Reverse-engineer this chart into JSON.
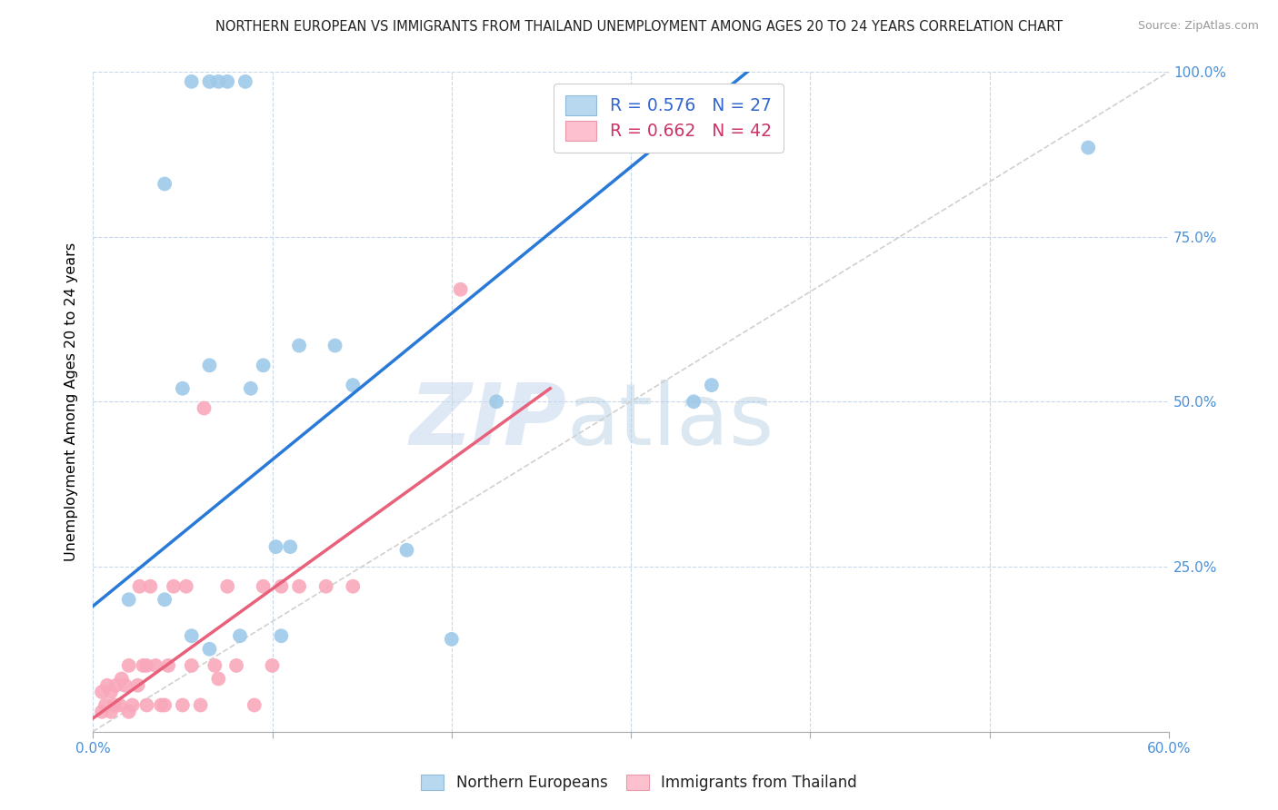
{
  "title": "NORTHERN EUROPEAN VS IMMIGRANTS FROM THAILAND UNEMPLOYMENT AMONG AGES 20 TO 24 YEARS CORRELATION CHART",
  "source": "Source: ZipAtlas.com",
  "ylabel": "Unemployment Among Ages 20 to 24 years",
  "xlim": [
    0.0,
    0.6
  ],
  "ylim": [
    0.0,
    1.0
  ],
  "xticks": [
    0.0,
    0.1,
    0.2,
    0.3,
    0.4,
    0.5,
    0.6
  ],
  "xtick_labels": [
    "0.0%",
    "",
    "",
    "",
    "",
    "",
    "60.0%"
  ],
  "yticks": [
    0.0,
    0.25,
    0.5,
    0.75,
    1.0
  ],
  "ytick_right_labels": [
    "",
    "25.0%",
    "50.0%",
    "75.0%",
    "100.0%"
  ],
  "blue_R": 0.576,
  "blue_N": 27,
  "pink_R": 0.662,
  "pink_N": 42,
  "blue_color": "#9ec9e8",
  "pink_color": "#f9a8bb",
  "blue_line_color": "#2979d8",
  "pink_line_color": "#e8607a",
  "ref_line_color": "#d0d0d0",
  "watermark_zip": "ZIP",
  "watermark_atlas": "atlas",
  "blue_line_x": [
    0.0,
    0.365
  ],
  "blue_line_y": [
    0.19,
    1.0
  ],
  "pink_line_x": [
    0.0,
    0.255
  ],
  "pink_line_y": [
    0.02,
    0.52
  ],
  "blue_scatter_x": [
    0.02,
    0.04,
    0.055,
    0.065,
    0.07,
    0.075,
    0.085,
    0.04,
    0.05,
    0.065,
    0.088,
    0.095,
    0.11,
    0.115,
    0.135,
    0.145,
    0.175,
    0.2,
    0.055,
    0.065,
    0.082,
    0.102,
    0.105,
    0.225,
    0.335,
    0.345,
    0.555
  ],
  "blue_scatter_y": [
    0.2,
    0.2,
    0.985,
    0.985,
    0.985,
    0.985,
    0.985,
    0.83,
    0.52,
    0.555,
    0.52,
    0.555,
    0.28,
    0.585,
    0.585,
    0.525,
    0.275,
    0.14,
    0.145,
    0.125,
    0.145,
    0.28,
    0.145,
    0.5,
    0.5,
    0.525,
    0.885
  ],
  "pink_scatter_x": [
    0.005,
    0.005,
    0.007,
    0.008,
    0.01,
    0.01,
    0.012,
    0.013,
    0.015,
    0.016,
    0.018,
    0.02,
    0.02,
    0.022,
    0.025,
    0.026,
    0.028,
    0.03,
    0.03,
    0.032,
    0.035,
    0.038,
    0.04,
    0.042,
    0.045,
    0.05,
    0.052,
    0.055,
    0.06,
    0.062,
    0.068,
    0.07,
    0.075,
    0.08,
    0.09,
    0.095,
    0.1,
    0.105,
    0.115,
    0.13,
    0.145,
    0.205
  ],
  "pink_scatter_y": [
    0.03,
    0.06,
    0.04,
    0.07,
    0.03,
    0.06,
    0.04,
    0.07,
    0.04,
    0.08,
    0.07,
    0.03,
    0.1,
    0.04,
    0.07,
    0.22,
    0.1,
    0.04,
    0.1,
    0.22,
    0.1,
    0.04,
    0.04,
    0.1,
    0.22,
    0.04,
    0.22,
    0.1,
    0.04,
    0.49,
    0.1,
    0.08,
    0.22,
    0.1,
    0.04,
    0.22,
    0.1,
    0.22,
    0.22,
    0.22,
    0.22,
    0.67
  ]
}
